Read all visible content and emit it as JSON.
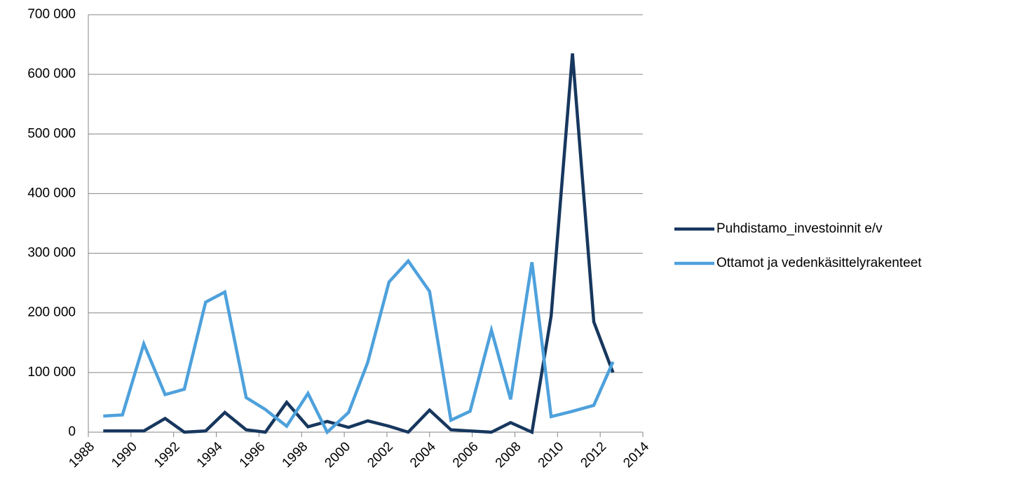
{
  "chart_data": {
    "type": "line",
    "x": [
      1988.7,
      1989.6,
      1990.6,
      1991.6,
      1992.5,
      1993.5,
      1994.4,
      1995.4,
      1996.3,
      1997.3,
      1998.3,
      1999.2,
      2000.2,
      2001.1,
      2002.1,
      2003.0,
      2004.0,
      2005.0,
      2005.9,
      2006.9,
      2007.8,
      2008.8,
      2009.7,
      2010.7,
      2011.7,
      2012.6
    ],
    "series": [
      {
        "name": "Puhdistamo_investoinnit e/v",
        "color": "#17375e",
        "values": [
          2000,
          2000,
          2000,
          23000,
          0,
          2000,
          33000,
          4000,
          0,
          50000,
          9000,
          18000,
          8000,
          19000,
          10000,
          0,
          37000,
          4000,
          2000,
          0,
          16000,
          0,
          195000,
          635000,
          185000,
          100000
        ]
      },
      {
        "name": "Ottamot ja vedenkäsittelyrakenteet",
        "color": "#4ea1dc",
        "values": [
          27000,
          29000,
          148000,
          63000,
          72000,
          218000,
          235000,
          58000,
          38000,
          10000,
          65000,
          0,
          33000,
          117000,
          252000,
          287000,
          236000,
          20000,
          35000,
          171000,
          55000,
          285000,
          26000,
          35000,
          45000,
          118000
        ]
      }
    ],
    "xlim": [
      1988,
      2014
    ],
    "xticks": [
      1988,
      1990,
      1992,
      1994,
      1996,
      1998,
      2000,
      2002,
      2004,
      2006,
      2008,
      2010,
      2012,
      2014
    ],
    "ylim": [
      0,
      700000
    ],
    "yticks": [
      0,
      {
        "value": 100000,
        "label": "100 000"
      },
      {
        "value": 200000,
        "label": "200 000"
      },
      {
        "value": 300000,
        "label": "300 000"
      },
      {
        "value": 400000,
        "label": "400 000"
      },
      {
        "value": 500000,
        "label": "500 000"
      },
      {
        "value": 600000,
        "label": "600 000"
      },
      {
        "value": 700000,
        "label": "700 000"
      }
    ],
    "grid": true,
    "legend": "right"
  }
}
